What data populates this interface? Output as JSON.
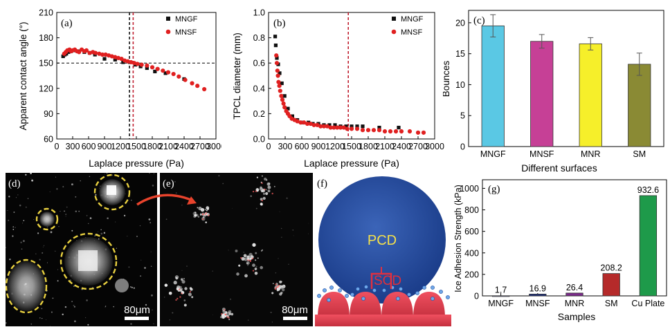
{
  "panel_a": {
    "tag": "(a)",
    "ylabel": "Apparent contact angle (°)",
    "xlabel": "Laplace pressure (Pa)",
    "xticks": [
      "0",
      "300",
      "600",
      "900",
      "1200",
      "1500",
      "1800",
      "2100",
      "2400",
      "2700",
      "3000"
    ],
    "yticks": [
      "60",
      "90",
      "120",
      "150",
      "180",
      "210"
    ],
    "legend": [
      "MNGF",
      "MNSF"
    ]
  },
  "panel_b": {
    "tag": "(b)",
    "ylabel": "TPCL diameter (mm)",
    "xlabel": "Laplace pressure (Pa)",
    "xticks": [
      "0",
      "300",
      "600",
      "900",
      "1200",
      "1500",
      "1800",
      "2100",
      "2400",
      "2700",
      "3000"
    ],
    "yticks": [
      "0.0",
      "0.2",
      "0.4",
      "0.6",
      "0.8",
      "1.0"
    ],
    "legend": [
      "MNGF",
      "MNSF"
    ]
  },
  "panel_c": {
    "tag": "(c)",
    "ylabel": "Bounces",
    "xlabel": "Different surfaces",
    "yticks": [
      "0",
      "5",
      "10",
      "15",
      "20"
    ]
  },
  "panel_d": {
    "tag": "(d)",
    "scale": "80μm"
  },
  "panel_e": {
    "tag": "(e)",
    "scale": "80μm"
  },
  "panel_f": {
    "tag": "(f)",
    "pcd": "PCD",
    "scd": "SCD"
  },
  "panel_g": {
    "tag": "(g)",
    "ylabel": "Ice Adhesion Strength (kPa)",
    "xlabel": "Samples",
    "yticks": [
      "0",
      "200",
      "400",
      "600",
      "800",
      "1000"
    ]
  },
  "colors": {
    "black": "#111111",
    "red": "#e02020",
    "blue": "#1d4aa0",
    "pcd_text": "#f5e14a",
    "scd_text": "#e0303a"
  },
  "chart_data": [
    {
      "type": "scatter",
      "title": "",
      "xlabel": "Laplace pressure (Pa)",
      "ylabel": "Apparent contact angle (°)",
      "xlim": [
        0,
        3000
      ],
      "ylim": [
        60,
        210
      ],
      "vlines": [
        1370,
        1440
      ],
      "hline": 150,
      "series": [
        {
          "name": "MNGF",
          "points": [
            [
              120,
              158
            ],
            [
              150,
              160
            ],
            [
              180,
              161
            ],
            [
              220,
              163
            ],
            [
              270,
              164
            ],
            [
              330,
              165
            ],
            [
              420,
              164
            ],
            [
              520,
              163
            ],
            [
              620,
              162
            ],
            [
              720,
              160
            ],
            [
              900,
              155
            ],
            [
              1100,
              154
            ],
            [
              1250,
              151
            ],
            [
              1380,
              151
            ],
            [
              1480,
              148
            ],
            [
              1580,
              146
            ],
            [
              1700,
              144
            ],
            [
              1850,
              140
            ],
            [
              2050,
              138
            ],
            [
              2400,
              131
            ]
          ]
        },
        {
          "name": "MNSF",
          "points": [
            [
              140,
              161
            ],
            [
              170,
              163
            ],
            [
              200,
              165
            ],
            [
              240,
              166
            ],
            [
              270,
              164
            ],
            [
              300,
              165
            ],
            [
              340,
              166
            ],
            [
              380,
              164
            ],
            [
              420,
              163
            ],
            [
              470,
              166
            ],
            [
              520,
              164
            ],
            [
              560,
              165
            ],
            [
              620,
              162
            ],
            [
              680,
              163
            ],
            [
              730,
              162
            ],
            [
              800,
              161
            ],
            [
              860,
              160
            ],
            [
              920,
              160
            ],
            [
              980,
              159
            ],
            [
              1040,
              158
            ],
            [
              1100,
              157
            ],
            [
              1160,
              156
            ],
            [
              1220,
              155
            ],
            [
              1280,
              153
            ],
            [
              1340,
              152
            ],
            [
              1400,
              151
            ],
            [
              1460,
              150
            ],
            [
              1520,
              149
            ],
            [
              1600,
              148
            ],
            [
              1700,
              147
            ],
            [
              1800,
              145
            ],
            [
              1900,
              143
            ],
            [
              2000,
              141
            ],
            [
              2100,
              139
            ],
            [
              2200,
              137
            ],
            [
              2300,
              134
            ],
            [
              2420,
              130
            ],
            [
              2550,
              126
            ],
            [
              2650,
              123
            ],
            [
              2780,
              119
            ]
          ]
        }
      ]
    },
    {
      "type": "scatter",
      "title": "",
      "xlabel": "Laplace pressure (Pa)",
      "ylabel": "TPCL diameter (mm)",
      "xlim": [
        0,
        3000
      ],
      "ylim": [
        0,
        1.0
      ],
      "vline": 1440,
      "series": [
        {
          "name": "MNGF",
          "points": [
            [
              120,
              0.81
            ],
            [
              130,
              0.74
            ],
            [
              150,
              0.64
            ],
            [
              175,
              0.59
            ],
            [
              200,
              0.52
            ],
            [
              240,
              0.44
            ],
            [
              290,
              0.34
            ],
            [
              350,
              0.24
            ],
            [
              430,
              0.18
            ],
            [
              520,
              0.15
            ],
            [
              620,
              0.13
            ],
            [
              720,
              0.13
            ],
            [
              800,
              0.12
            ],
            [
              900,
              0.12
            ],
            [
              1000,
              0.11
            ],
            [
              1100,
              0.11
            ],
            [
              1200,
              0.11
            ],
            [
              1300,
              0.1
            ],
            [
              1400,
              0.1
            ],
            [
              1500,
              0.1
            ],
            [
              1600,
              0.1
            ],
            [
              1700,
              0.1
            ],
            [
              2000,
              0.09
            ],
            [
              2350,
              0.09
            ]
          ]
        },
        {
          "name": "MNSF",
          "points": [
            [
              140,
              0.66
            ],
            [
              150,
              0.6
            ],
            [
              160,
              0.54
            ],
            [
              170,
              0.5
            ],
            [
              180,
              0.45
            ],
            [
              195,
              0.42
            ],
            [
              210,
              0.38
            ],
            [
              230,
              0.34
            ],
            [
              250,
              0.31
            ],
            [
              270,
              0.28
            ],
            [
              290,
              0.25
            ],
            [
              320,
              0.22
            ],
            [
              350,
              0.2
            ],
            [
              380,
              0.18
            ],
            [
              420,
              0.16
            ],
            [
              470,
              0.15
            ],
            [
              520,
              0.14
            ],
            [
              580,
              0.13
            ],
            [
              640,
              0.13
            ],
            [
              700,
              0.12
            ],
            [
              760,
              0.12
            ],
            [
              820,
              0.11
            ],
            [
              880,
              0.11
            ],
            [
              940,
              0.1
            ],
            [
              1000,
              0.1
            ],
            [
              1060,
              0.1
            ],
            [
              1120,
              0.09
            ],
            [
              1180,
              0.09
            ],
            [
              1240,
              0.09
            ],
            [
              1300,
              0.09
            ],
            [
              1360,
              0.09
            ],
            [
              1420,
              0.08
            ],
            [
              1500,
              0.08
            ],
            [
              1600,
              0.08
            ],
            [
              1700,
              0.07
            ],
            [
              1800,
              0.07
            ],
            [
              1900,
              0.07
            ],
            [
              2000,
              0.07
            ],
            [
              2100,
              0.06
            ],
            [
              2200,
              0.06
            ],
            [
              2300,
              0.06
            ],
            [
              2400,
              0.06
            ],
            [
              2550,
              0.06
            ],
            [
              2700,
              0.05
            ],
            [
              2800,
              0.05
            ]
          ]
        }
      ]
    },
    {
      "type": "bar",
      "title": "",
      "xlabel": "Different surfaces",
      "ylabel": "Bounces",
      "ylim": [
        0,
        22
      ],
      "categories": [
        "MNGF",
        "MNSF",
        "MNR",
        "SM"
      ],
      "values": [
        19.5,
        17.0,
        16.6,
        13.3
      ],
      "errors": [
        1.8,
        1.1,
        1.0,
        1.8
      ],
      "colors": [
        "#5ac8e4",
        "#c64096",
        "#f6ef2a",
        "#8a8a34"
      ]
    },
    {
      "type": "bar",
      "title": "",
      "xlabel": "Samples",
      "ylabel": "Ice Adhesion Strength (kPa)",
      "ylim": [
        0,
        1080
      ],
      "categories": [
        "MNGF",
        "MNSF",
        "MNR",
        "SM",
        "Cu Plate"
      ],
      "values": [
        1.7,
        16.9,
        26.4,
        208.2,
        932.6
      ],
      "data_labels": [
        "1.7",
        "16.9",
        "26.4",
        "208.2",
        "932.6"
      ],
      "colors": [
        "#8888aa",
        "#1d2e7a",
        "#7a2a8a",
        "#b52a2a",
        "#1e9a4a"
      ]
    }
  ]
}
